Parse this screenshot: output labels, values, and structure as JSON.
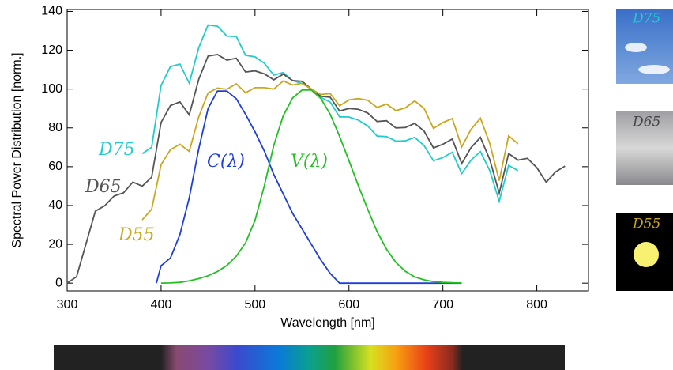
{
  "chart_data": {
    "type": "line",
    "xlabel": "Wavelength [nm]",
    "ylabel": "Spectral Power Distribution [norm.]",
    "xlim": [
      300,
      855
    ],
    "ylim": [
      -4,
      141
    ],
    "xticks": [
      300,
      400,
      500,
      600,
      700,
      800
    ],
    "yticks": [
      0,
      20,
      40,
      60,
      80,
      100,
      120,
      140
    ],
    "series": [
      {
        "name": "D75",
        "color": "#22cccc",
        "x": [
          380,
          390,
          400,
          410,
          420,
          430,
          440,
          450,
          460,
          470,
          480,
          490,
          500,
          510,
          520,
          530,
          540,
          550,
          560,
          570,
          580,
          590,
          600,
          610,
          620,
          630,
          640,
          650,
          660,
          670,
          680,
          690,
          700,
          710,
          720,
          730,
          740,
          750,
          760,
          770,
          780
        ],
        "values": [
          66.7,
          70.0,
          101.9,
          111.6,
          112.9,
          103.1,
          121.2,
          133.0,
          132.4,
          127.3,
          127.1,
          117.4,
          116.6,
          113.3,
          107.2,
          108.5,
          104.4,
          102.9,
          100,
          95.7,
          93.3,
          85.7,
          85.6,
          84.0,
          81.0,
          75.8,
          75.5,
          73.2,
          73.3,
          75.1,
          70.9,
          63.1,
          64.7,
          67.4,
          56.5,
          63.4,
          67.8,
          57.9,
          42.2,
          60.7,
          58.0
        ]
      },
      {
        "name": "D65",
        "color": "#555555",
        "x": [
          300,
          310,
          320,
          330,
          340,
          350,
          360,
          370,
          380,
          390,
          400,
          410,
          420,
          430,
          440,
          450,
          460,
          470,
          480,
          490,
          500,
          510,
          520,
          530,
          540,
          550,
          560,
          570,
          580,
          590,
          600,
          610,
          620,
          630,
          640,
          650,
          660,
          670,
          680,
          690,
          700,
          710,
          720,
          730,
          740,
          750,
          760,
          770,
          780,
          790,
          800,
          810,
          820,
          830
        ],
        "values": [
          0.03,
          3.3,
          20.2,
          37.1,
          39.9,
          44.9,
          46.6,
          52.1,
          50.0,
          54.6,
          82.8,
          91.5,
          93.4,
          86.7,
          104.9,
          117.0,
          117.8,
          114.9,
          115.9,
          108.8,
          109.4,
          107.8,
          104.8,
          107.7,
          104.4,
          104.0,
          100,
          96.3,
          95.8,
          88.7,
          90.0,
          89.6,
          87.7,
          83.3,
          83.7,
          80.0,
          80.2,
          82.3,
          78.3,
          69.7,
          71.6,
          74.3,
          61.6,
          69.9,
          75.1,
          63.6,
          46.4,
          66.8,
          63.4,
          64.3,
          59.5,
          52.0,
          57.4,
          60.3
        ]
      },
      {
        "name": "D55",
        "color": "#c9a820",
        "x": [
          380,
          390,
          400,
          410,
          420,
          430,
          440,
          450,
          460,
          470,
          480,
          490,
          500,
          510,
          520,
          530,
          540,
          550,
          560,
          570,
          580,
          590,
          600,
          610,
          620,
          630,
          640,
          650,
          660,
          670,
          680,
          690,
          700,
          710,
          720,
          730,
          740,
          750,
          760,
          770,
          780
        ],
        "values": [
          32.6,
          38.1,
          61.0,
          68.8,
          71.6,
          67.9,
          85.6,
          98.0,
          100.5,
          99.9,
          102.7,
          98.1,
          100.7,
          100.7,
          100.0,
          104.2,
          102.1,
          103.0,
          100,
          97.2,
          97.7,
          91.4,
          94.4,
          95.1,
          94.2,
          90.5,
          92.3,
          88.9,
          90.3,
          93.9,
          90.0,
          79.7,
          82.8,
          84.8,
          70.2,
          79.3,
          85.0,
          71.9,
          52.8,
          75.9,
          71.8
        ]
      },
      {
        "name": "C(λ)",
        "color": "#1f3fd8",
        "x": [
          395,
          400,
          410,
          420,
          430,
          440,
          450,
          460,
          470,
          480,
          490,
          500,
          510,
          520,
          530,
          540,
          550,
          560,
          570,
          580,
          590,
          600,
          610,
          620,
          630,
          640,
          650,
          660,
          670,
          680,
          690,
          700,
          710,
          720
        ],
        "values": [
          0,
          9,
          13,
          25,
          44,
          69,
          90,
          99,
          99,
          95,
          87,
          78,
          68,
          56,
          46,
          36,
          28,
          20,
          12,
          5,
          0,
          0,
          0,
          0,
          0,
          0,
          0,
          0,
          0,
          0,
          0,
          0,
          0,
          0
        ]
      },
      {
        "name": "V(λ)",
        "color": "#22c022",
        "x": [
          400,
          410,
          420,
          430,
          440,
          450,
          460,
          470,
          480,
          490,
          500,
          510,
          520,
          530,
          540,
          550,
          560,
          570,
          580,
          590,
          600,
          610,
          620,
          630,
          640,
          650,
          660,
          670,
          680,
          690,
          700,
          710,
          720
        ],
        "values": [
          0.04,
          0.12,
          0.4,
          1.16,
          2.3,
          3.8,
          6,
          9.1,
          13.9,
          20.8,
          32.3,
          50.3,
          71,
          86.2,
          95.4,
          99.5,
          99.5,
          95.2,
          87,
          75.7,
          63.1,
          50.3,
          38.1,
          26.5,
          17.5,
          10.7,
          6.1,
          3.2,
          1.7,
          0.8,
          0.4,
          0.2,
          0.1
        ]
      }
    ]
  },
  "thumbnails": [
    "D75",
    "D65",
    "D55"
  ]
}
